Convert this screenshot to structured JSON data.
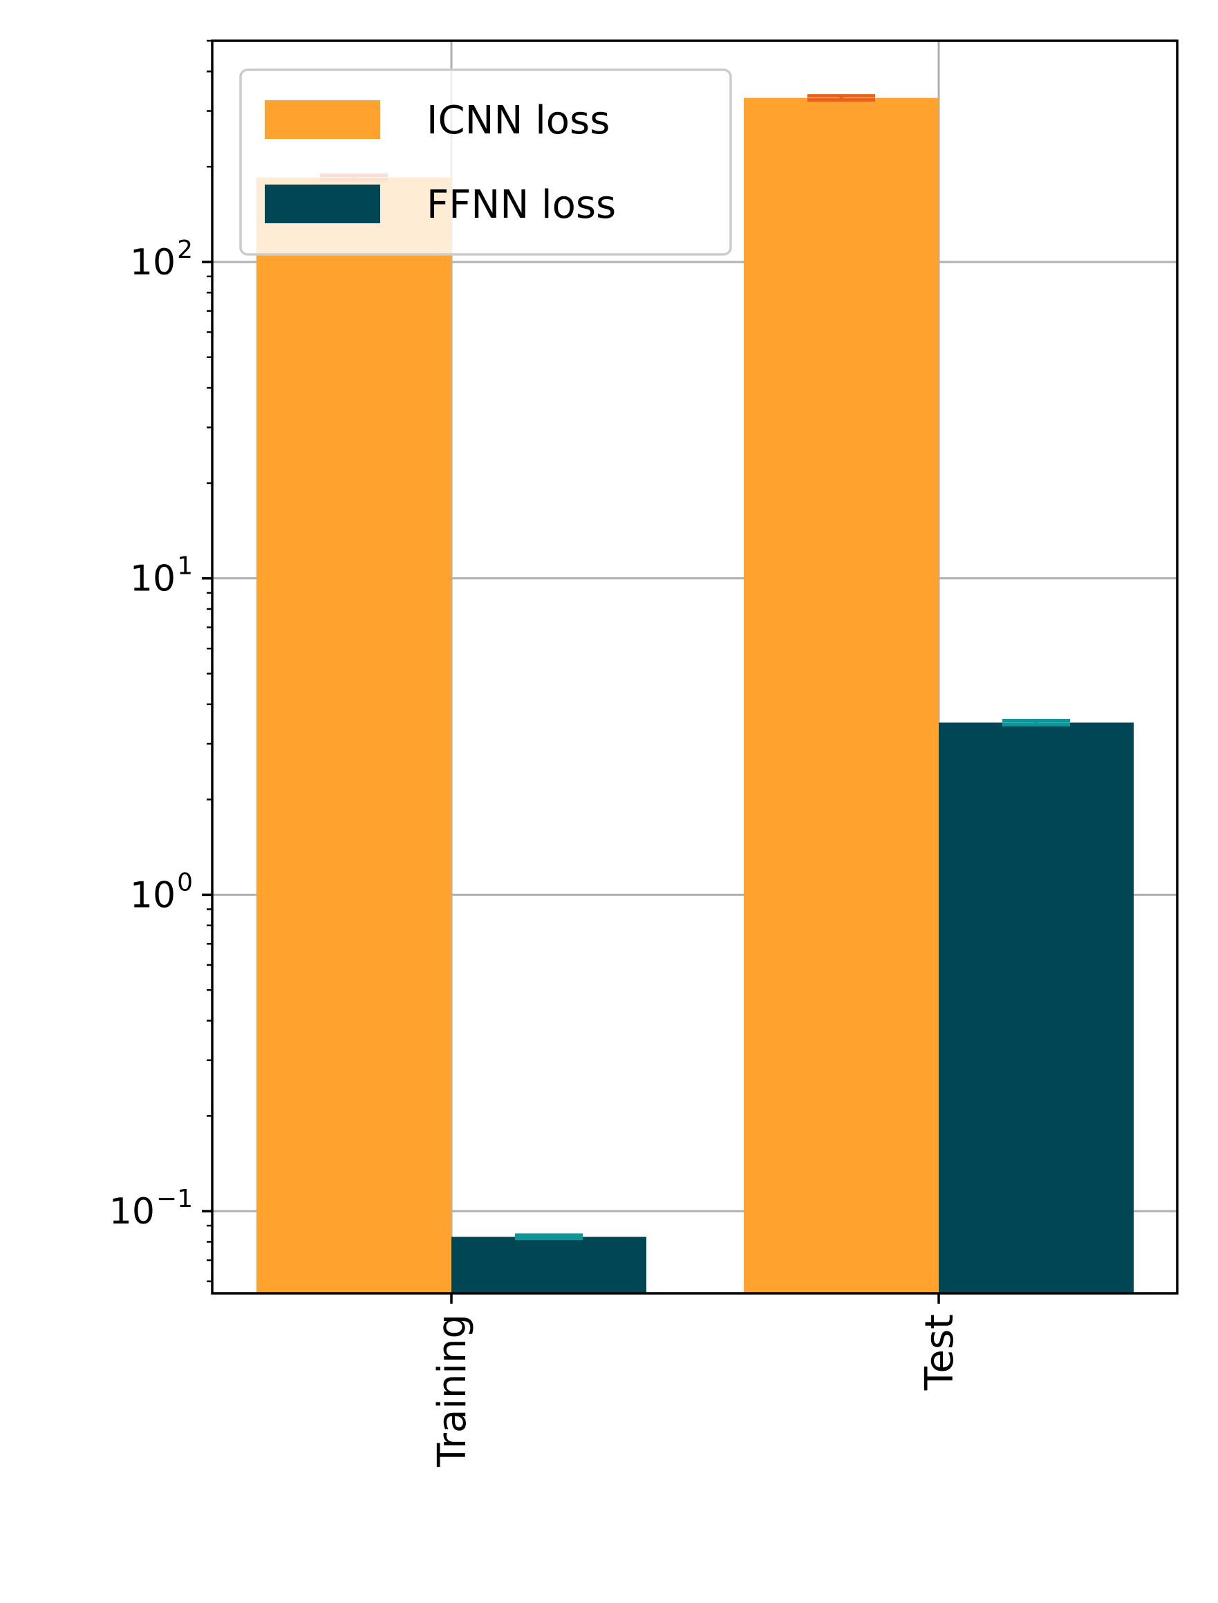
{
  "chart_data": {
    "type": "bar",
    "title": "",
    "xlabel": "",
    "ylabel": "",
    "yscale": "log",
    "ylim": [
      0.055,
      500
    ],
    "grid": true,
    "legend_position": "top-left",
    "categories": [
      "Training",
      "Test"
    ],
    "y_ticks": [
      {
        "value": 0.1,
        "base": "10",
        "exp": "−1"
      },
      {
        "value": 1,
        "base": "10",
        "exp": "0"
      },
      {
        "value": 10,
        "base": "10",
        "exp": "1"
      },
      {
        "value": 100,
        "base": "10",
        "exp": "2"
      }
    ],
    "series": [
      {
        "name": "ICNN loss",
        "values": [
          185,
          330
        ],
        "errors": [
          3,
          5
        ],
        "color": "#FFA22E",
        "error_color": "#E8611A"
      },
      {
        "name": "FFNN loss",
        "values": [
          0.083,
          3.5
        ],
        "errors": [
          0.001,
          0.05
        ],
        "color": "#004655",
        "error_color": "#0E9597"
      }
    ]
  }
}
